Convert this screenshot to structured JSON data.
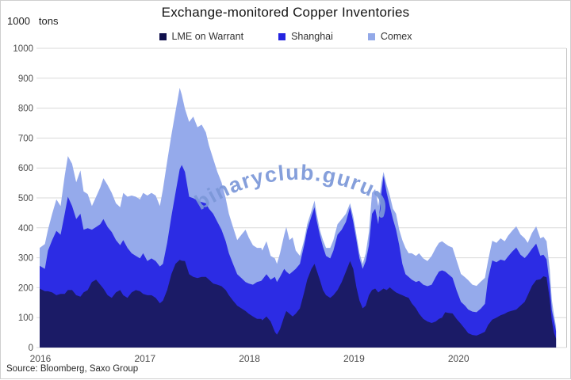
{
  "header": {
    "unit_value": "1000",
    "unit_label": "tons",
    "title": "Exchange-monitored Copper Inventories"
  },
  "legend": [
    {
      "label": "LME on Warrant",
      "color": "#11114d"
    },
    {
      "label": "Shanghai",
      "color": "#2424e0"
    },
    {
      "label": "Comex",
      "color": "#93a9e8"
    }
  ],
  "watermark": {
    "text": "binaryclub.guru",
    "color": "#7b97d8"
  },
  "source": "Source: Bloomberg, Saxo Group",
  "colors": {
    "grid": "#d9d9d9",
    "axis_text": "#4d4d4d",
    "frame": "#c4c4c4"
  },
  "chart_data": {
    "type": "area",
    "stacked": true,
    "title": "Exchange-monitored Copper Inventories",
    "ylabel": "1000 tons",
    "ylim": [
      0,
      1000
    ],
    "ytick_step": 100,
    "y_ticks": [
      1000,
      900,
      800,
      700,
      600,
      500,
      400,
      300,
      200,
      100,
      0
    ],
    "x_ticks": [
      2016,
      2017,
      2018,
      2019,
      2020
    ],
    "grid": "horizontal",
    "legend_position": "top",
    "x": [
      2016.0,
      2016.05,
      2016.08,
      2016.12,
      2016.16,
      2016.2,
      2016.24,
      2016.27,
      2016.31,
      2016.35,
      2016.39,
      2016.42,
      2016.46,
      2016.5,
      2016.54,
      2016.58,
      2016.61,
      2016.65,
      2016.69,
      2016.73,
      2016.77,
      2016.8,
      2016.84,
      2016.88,
      2016.92,
      2016.96,
      2016.99,
      2017.03,
      2017.07,
      2017.11,
      2017.15,
      2017.18,
      2017.22,
      2017.26,
      2017.3,
      2017.34,
      2017.36,
      2017.39,
      2017.43,
      2017.47,
      2017.51,
      2017.55,
      2017.59,
      2017.62,
      2017.66,
      2017.7,
      2017.74,
      2017.78,
      2017.81,
      2017.85,
      2017.89,
      2017.93,
      2017.97,
      2018.0,
      2018.04,
      2018.08,
      2018.12,
      2018.13,
      2018.17,
      2018.21,
      2018.25,
      2018.27,
      2018.3,
      2018.34,
      2018.36,
      2018.39,
      2018.42,
      2018.45,
      2018.49,
      2018.53,
      2018.56,
      2018.6,
      2018.63,
      2018.65,
      2018.68,
      2018.71,
      2018.74,
      2018.78,
      2018.81,
      2018.85,
      2018.89,
      2018.93,
      2018.97,
      2019.0,
      2019.03,
      2019.06,
      2019.09,
      2019.12,
      2019.15,
      2019.18,
      2019.21,
      2019.24,
      2019.27,
      2019.29,
      2019.32,
      2019.35,
      2019.38,
      2019.41,
      2019.44,
      2019.47,
      2019.5,
      2019.53,
      2019.56,
      2019.6,
      2019.63,
      2019.67,
      2019.71,
      2019.75,
      2019.79,
      2019.82,
      2019.85,
      2019.88,
      2019.91,
      2019.95,
      2019.99,
      2020.03,
      2020.07,
      2020.1,
      2020.14,
      2020.18,
      2020.22,
      2020.26,
      2020.29,
      2020.33,
      2020.37,
      2020.41,
      2020.45,
      2020.48,
      2020.52,
      2020.56,
      2020.6,
      2020.64,
      2020.67,
      2020.71,
      2020.75,
      2020.79,
      2020.82,
      2020.85,
      2020.88,
      2020.9,
      2020.92,
      2020.94
    ],
    "series": [
      {
        "name": "LME on Warrant",
        "color": "#1b1b66",
        "values": [
          197,
          188,
          188,
          184,
          175,
          179,
          179,
          192,
          192,
          175,
          170,
          184,
          192,
          219,
          227,
          210,
          197,
          175,
          166,
          184,
          192,
          175,
          166,
          184,
          192,
          188,
          179,
          175,
          175,
          166,
          148,
          157,
          192,
          245,
          280,
          293,
          290,
          289,
          245,
          236,
          232,
          236,
          236,
          227,
          214,
          210,
          205,
          192,
          175,
          157,
          140,
          131,
          122,
          113,
          104,
          96,
          96,
          91,
          104,
          87,
          52,
          43,
          61,
          104,
          122,
          113,
          104,
          113,
          131,
          184,
          227,
          263,
          280,
          258,
          227,
          192,
          175,
          166,
          175,
          192,
          219,
          254,
          289,
          263,
          201,
          157,
          131,
          140,
          175,
          192,
          197,
          184,
          192,
          197,
          192,
          201,
          192,
          184,
          179,
          175,
          170,
          166,
          148,
          131,
          113,
          96,
          87,
          82,
          87,
          96,
          100,
          118,
          116,
          114,
          95,
          79,
          62,
          48,
          42,
          40,
          46,
          53,
          75,
          93,
          100,
          108,
          113,
          119,
          123,
          127,
          140,
          153,
          175,
          206,
          225,
          228,
          238,
          235,
          160,
          90,
          50,
          30
        ]
      },
      {
        "name": "Shanghai",
        "color": "#2c2ce4",
        "values": [
          76,
          75,
          136,
          175,
          215,
          198,
          268,
          312,
          281,
          254,
          277,
          210,
          207,
          175,
          176,
          202,
          232,
          228,
          220,
          175,
          150,
          184,
          167,
          131,
          114,
          110,
          136,
          114,
          123,
          123,
          123,
          123,
          158,
          193,
          237,
          303,
          320,
          298,
          259,
          263,
          259,
          250,
          246,
          237,
          233,
          210,
          189,
          163,
          140,
          123,
          105,
          101,
          97,
          101,
          106,
          123,
          127,
          136,
          141,
          140,
          184,
          176,
          175,
          159,
          132,
          132,
          150,
          150,
          149,
          158,
          167,
          175,
          189,
          167,
          150,
          145,
          131,
          132,
          149,
          185,
          175,
          166,
          180,
          157,
          158,
          141,
          132,
          149,
          167,
          255,
          267,
          228,
          325,
          377,
          325,
          272,
          237,
          210,
          163,
          105,
          75,
          70,
          79,
          88,
          110,
          114,
          118,
          128,
          149,
          158,
          158,
          136,
          129,
          119,
          95,
          74,
          78,
          79,
          78,
          78,
          84,
          93,
          155,
          198,
          185,
          186,
          177,
          185,
          197,
          207,
          170,
          146,
          135,
          124,
          122,
          79,
          72,
          60,
          50,
          35,
          40,
          25
        ]
      },
      {
        "name": "Comex",
        "color": "#95aaeb",
        "values": [
          60,
          83,
          70,
          88,
          105,
          96,
          127,
          136,
          141,
          123,
          145,
          128,
          114,
          79,
          101,
          123,
          137,
          140,
          131,
          123,
          127,
          158,
          171,
          193,
          198,
          197,
          202,
          219,
          219,
          219,
          202,
          250,
          272,
          272,
          272,
          272,
          235,
          211,
          250,
          273,
          245,
          259,
          237,
          211,
          184,
          167,
          158,
          144,
          132,
          123,
          114,
          145,
          175,
          154,
          132,
          114,
          110,
          97,
          110,
          79,
          62,
          61,
          79,
          114,
          149,
          114,
          114,
          61,
          26,
          17,
          18,
          18,
          22,
          22,
          17,
          22,
          27,
          35,
          35,
          35,
          35,
          27,
          13,
          18,
          18,
          17,
          17,
          26,
          44,
          70,
          66,
          61,
          35,
          13,
          26,
          35,
          35,
          53,
          52,
          79,
          88,
          79,
          88,
          87,
          92,
          88,
          84,
          96,
          97,
          96,
          97,
          93,
          95,
          101,
          100,
          93,
          95,
          98,
          90,
          88,
          90,
          87,
          60,
          66,
          65,
          71,
          65,
          69,
          70,
          71,
          68,
          66,
          40,
          53,
          58,
          58,
          60,
          60,
          50,
          35,
          20,
          15
        ]
      }
    ]
  }
}
